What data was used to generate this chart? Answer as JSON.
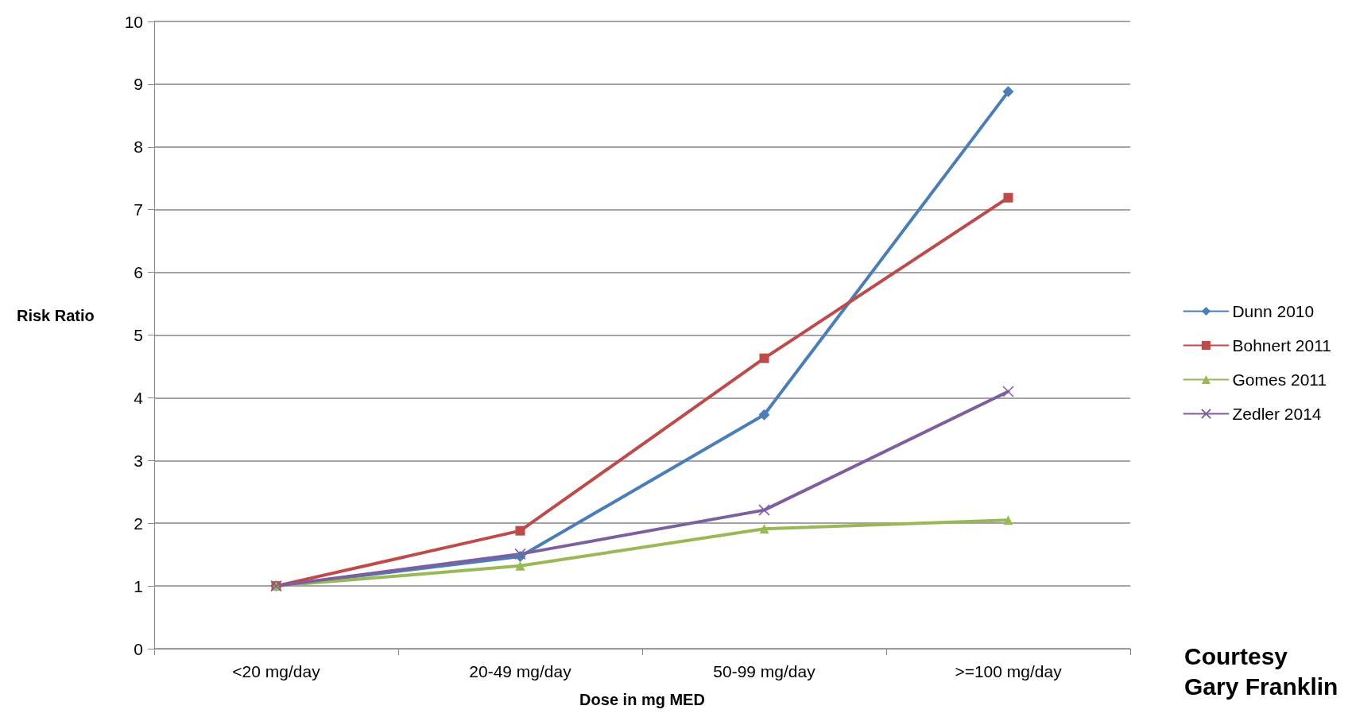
{
  "chart_data": {
    "type": "line",
    "xlabel": "Dose in mg MED",
    "ylabel": "Risk Ratio",
    "categories": [
      "<20 mg/day",
      "20-49 mg/day",
      "50-99 mg/day",
      ">=100 mg/day"
    ],
    "series": [
      {
        "name": "Dunn 2010",
        "color": "#4a7ebb",
        "marker": "diamond",
        "values": [
          1,
          1.47,
          3.73,
          8.88
        ]
      },
      {
        "name": "Bohnert 2011",
        "color": "#be4b48",
        "marker": "square",
        "values": [
          1,
          1.88,
          4.63,
          7.19
        ]
      },
      {
        "name": "Gomes 2011",
        "color": "#98b954",
        "marker": "triangle",
        "values": [
          1,
          1.32,
          1.91,
          2.05
        ]
      },
      {
        "name": "Zedler 2014",
        "color": "#7d5fa0",
        "marker": "cross",
        "values": [
          1,
          1.51,
          2.21,
          4.1
        ]
      }
    ],
    "ylim": [
      0,
      10
    ],
    "yticks": [
      0,
      1,
      2,
      3,
      4,
      5,
      6,
      7,
      8,
      9,
      10
    ],
    "grid": "y",
    "legend": "right",
    "annotations": [
      "Courtesy\nGary Franklin"
    ]
  }
}
